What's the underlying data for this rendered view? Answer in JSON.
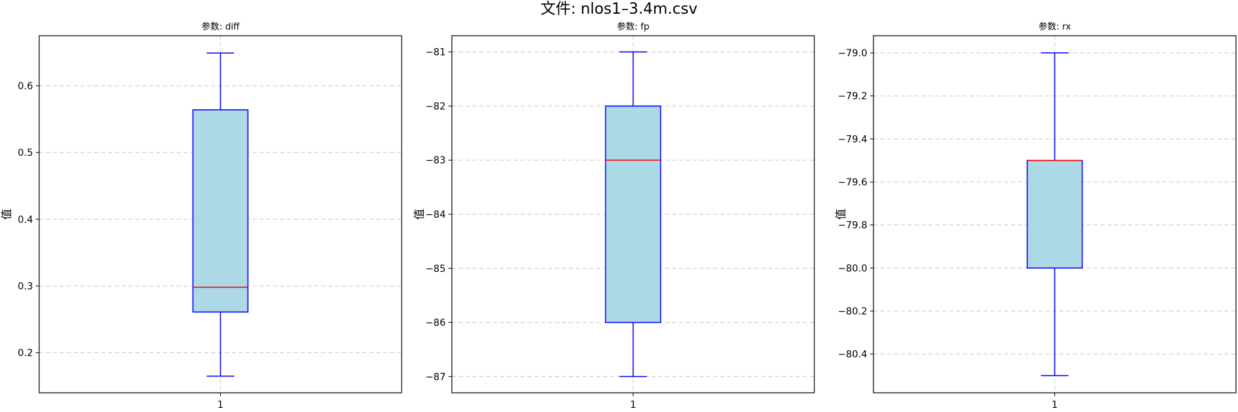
{
  "figure": {
    "title": "文件: nlos1–3.4m.csv"
  },
  "chart_data": [
    {
      "type": "box",
      "title": "参数: diff",
      "xlabel": "",
      "ylabel": "值",
      "categories": [
        "1"
      ],
      "box": {
        "whisker_low": 0.165,
        "q1": 0.261,
        "median": 0.298,
        "q3": 0.564,
        "whisker_high": 0.649
      },
      "ylim": [
        0.14,
        0.675
      ],
      "yticks": [
        0.2,
        0.3,
        0.4,
        0.5,
        0.6
      ],
      "ytick_labels": [
        "0.2",
        "0.3",
        "0.4",
        "0.5",
        "0.6"
      ],
      "grid": true,
      "colors": {
        "box_fill": "#add8e6",
        "box_edge": "#0000ff",
        "median": "#ff0000",
        "grid": "#c8c8c8"
      }
    },
    {
      "type": "box",
      "title": "参数: fp",
      "xlabel": "",
      "ylabel": "值",
      "categories": [
        "1"
      ],
      "box": {
        "whisker_low": -87,
        "q1": -86,
        "median": -83,
        "q3": -82,
        "whisker_high": -81
      },
      "ylim": [
        -87.3,
        -80.7
      ],
      "yticks": [
        -87,
        -86,
        -85,
        -84,
        -83,
        -82,
        -81
      ],
      "ytick_labels": [
        "−87",
        "−86",
        "−85",
        "−84",
        "−83",
        "−82",
        "−81"
      ],
      "grid": true,
      "colors": {
        "box_fill": "#add8e6",
        "box_edge": "#0000ff",
        "median": "#ff0000",
        "grid": "#c8c8c8"
      }
    },
    {
      "type": "box",
      "title": "参数: rx",
      "xlabel": "",
      "ylabel": "值",
      "categories": [
        "1"
      ],
      "box": {
        "whisker_low": -80.5,
        "q1": -80.0,
        "median": -79.5,
        "q3": -79.5,
        "whisker_high": -79.0
      },
      "ylim": [
        -80.58,
        -78.92
      ],
      "yticks": [
        -80.4,
        -80.2,
        -80.0,
        -79.8,
        -79.6,
        -79.4,
        -79.2,
        -79.0
      ],
      "ytick_labels": [
        "−80.4",
        "−80.2",
        "−80.0",
        "−79.8",
        "−79.6",
        "−79.4",
        "−79.2",
        "−79.0"
      ],
      "grid": true,
      "colors": {
        "box_fill": "#add8e6",
        "box_edge": "#0000ff",
        "median": "#ff0000",
        "grid": "#c8c8c8"
      }
    }
  ]
}
